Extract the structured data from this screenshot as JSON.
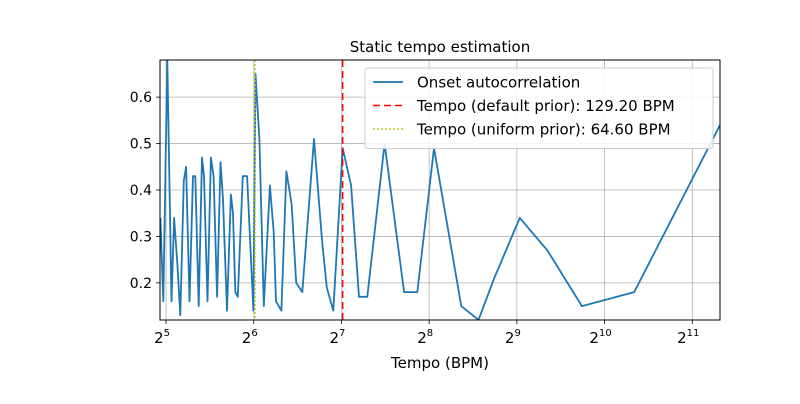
{
  "chart_data": {
    "type": "line",
    "title": "Static tempo estimation",
    "xlabel": "Tempo (BPM)",
    "ylabel": "",
    "x_scale": "log2",
    "xlim": [
      30.5,
      2550
    ],
    "ylim": [
      0.12,
      0.68
    ],
    "grid": true,
    "legend_position": "upper right",
    "x_ticks": [
      {
        "value": 32,
        "base": "2",
        "exp": "5"
      },
      {
        "value": 64,
        "base": "2",
        "exp": "6"
      },
      {
        "value": 128,
        "base": "2",
        "exp": "7"
      },
      {
        "value": 256,
        "base": "2",
        "exp": "8"
      },
      {
        "value": 512,
        "base": "2",
        "exp": "9"
      },
      {
        "value": 1024,
        "base": "2",
        "exp": "10"
      },
      {
        "value": 2048,
        "base": "2",
        "exp": "11"
      }
    ],
    "y_ticks": [
      {
        "value": 0.2,
        "label": "0.2"
      },
      {
        "value": 0.3,
        "label": "0.3"
      },
      {
        "value": 0.4,
        "label": "0.4"
      },
      {
        "value": 0.5,
        "label": "0.5"
      },
      {
        "value": 0.6,
        "label": "0.6"
      }
    ],
    "series": [
      {
        "name": "Onset autocorrelation",
        "color": "#1f77b4",
        "style": "solid",
        "points": [
          [
            30.6,
            0.34
          ],
          [
            31.3,
            0.16
          ],
          [
            32.3,
            0.68
          ],
          [
            33.4,
            0.16
          ],
          [
            34.1,
            0.34
          ],
          [
            35.0,
            0.24
          ],
          [
            35.8,
            0.13
          ],
          [
            36.8,
            0.42
          ],
          [
            37.5,
            0.45
          ],
          [
            38.5,
            0.16
          ],
          [
            39.6,
            0.43
          ],
          [
            40.3,
            0.43
          ],
          [
            41.4,
            0.15
          ],
          [
            42.5,
            0.47
          ],
          [
            43.2,
            0.43
          ],
          [
            44.4,
            0.16
          ],
          [
            45.6,
            0.47
          ],
          [
            46.6,
            0.43
          ],
          [
            47.9,
            0.17
          ],
          [
            49.2,
            0.46
          ],
          [
            50.2,
            0.38
          ],
          [
            51.8,
            0.14
          ],
          [
            53.4,
            0.39
          ],
          [
            54.3,
            0.35
          ],
          [
            55.3,
            0.18
          ],
          [
            56.4,
            0.17
          ],
          [
            58.7,
            0.43
          ],
          [
            60.7,
            0.43
          ],
          [
            63.8,
            0.14
          ],
          [
            64.9,
            0.65
          ],
          [
            66.9,
            0.51
          ],
          [
            69.3,
            0.15
          ],
          [
            72.7,
            0.41
          ],
          [
            74.9,
            0.31
          ],
          [
            76.3,
            0.16
          ],
          [
            79.6,
            0.14
          ],
          [
            82.8,
            0.44
          ],
          [
            86.3,
            0.37
          ],
          [
            89.5,
            0.2
          ],
          [
            93.9,
            0.18
          ],
          [
            103.0,
            0.51
          ],
          [
            109.8,
            0.29
          ],
          [
            114.0,
            0.19
          ],
          [
            120.0,
            0.14
          ],
          [
            129.2,
            0.49
          ],
          [
            138.1,
            0.41
          ],
          [
            147.0,
            0.17
          ],
          [
            157.0,
            0.17
          ],
          [
            180.0,
            0.5
          ],
          [
            210.0,
            0.18
          ],
          [
            233.0,
            0.18
          ],
          [
            266.0,
            0.49
          ],
          [
            330.0,
            0.15
          ],
          [
            378.0,
            0.12
          ],
          [
            428.0,
            0.21
          ],
          [
            524.0,
            0.34
          ],
          [
            652.0,
            0.27
          ],
          [
            856.0,
            0.15
          ],
          [
            1294.0,
            0.18
          ],
          [
            2550.0,
            0.54
          ]
        ]
      }
    ],
    "vlines": [
      {
        "name": "Tempo (default prior): 129.20 BPM",
        "x": 129.2,
        "color": "#ff0000",
        "style": "dashed"
      },
      {
        "name": "Tempo (uniform prior): 64.60 BPM",
        "x": 64.6,
        "color": "#bcbd22",
        "style": "dotted"
      }
    ]
  }
}
